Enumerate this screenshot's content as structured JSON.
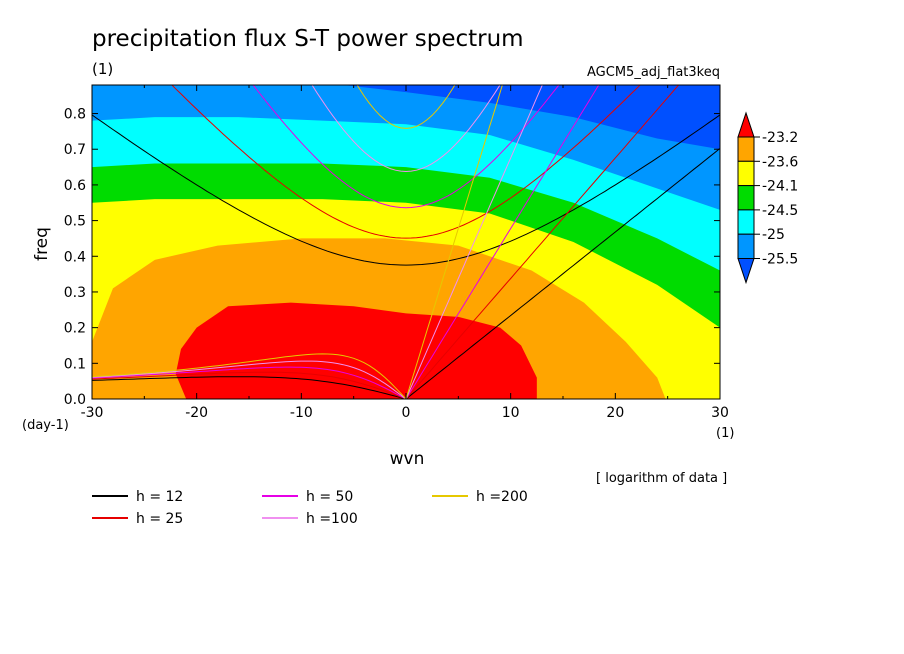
{
  "chart_data": {
    "type": "heatmap",
    "title": "precipitation flux S-T power spectrum",
    "subtitle_left": "(1)",
    "subtitle_right": "AGCM5_adj_flat3keq",
    "xlabel": "wvn",
    "ylabel": "freq",
    "x_unit": "(1)",
    "y_unit": "(day-1)",
    "xlim": [
      -30,
      30
    ],
    "ylim": [
      0,
      0.88
    ],
    "xticks": [
      "-30",
      "-20",
      "-10",
      "0",
      "10",
      "20",
      "30"
    ],
    "yticks": [
      "0.0",
      "0.1",
      "0.2",
      "0.3",
      "0.4",
      "0.5",
      "0.6",
      "0.7",
      "0.8"
    ],
    "note": "[ logarithm of data ]",
    "colorbar": {
      "levels": [
        "-23.2",
        "-23.6",
        "-24.1",
        "-24.5",
        "-25",
        "-25.5"
      ],
      "colors": [
        "#ff0000",
        "#ffa500",
        "#ffff00",
        "#00dc00",
        "#00ffff",
        "#0096ff",
        "#0050ff"
      ]
    },
    "contour_bands": [
      {
        "level": "-23.2",
        "color": "#ff0000",
        "boundary": [
          [
            -21,
            0
          ],
          [
            -22,
            0.07
          ],
          [
            -21.5,
            0.14
          ],
          [
            -20,
            0.2
          ],
          [
            -17,
            0.26
          ],
          [
            -11,
            0.27
          ],
          [
            -5,
            0.26
          ],
          [
            0,
            0.24
          ],
          [
            5,
            0.23
          ],
          [
            9,
            0.2
          ],
          [
            11,
            0.15
          ],
          [
            12.5,
            0.06
          ],
          [
            12.5,
            0
          ]
        ]
      },
      {
        "level": "-23.6",
        "color": "#ffa500",
        "boundary": [
          [
            -30,
            0.16
          ],
          [
            -28,
            0.31
          ],
          [
            -24,
            0.39
          ],
          [
            -18,
            0.43
          ],
          [
            -10,
            0.45
          ],
          [
            -2,
            0.45
          ],
          [
            5,
            0.43
          ],
          [
            12,
            0.36
          ],
          [
            17,
            0.27
          ],
          [
            21,
            0.16
          ],
          [
            24,
            0.06
          ],
          [
            24.8,
            0
          ]
        ]
      },
      {
        "level": "-24.1",
        "color": "#ffff00",
        "boundary": [
          [
            -30,
            0.55
          ],
          [
            -24,
            0.56
          ],
          [
            -16,
            0.56
          ],
          [
            -8,
            0.56
          ],
          [
            0,
            0.55
          ],
          [
            8,
            0.52
          ],
          [
            16,
            0.44
          ],
          [
            24,
            0.32
          ],
          [
            30,
            0.2
          ]
        ]
      },
      {
        "level": "-24.5",
        "color": "#00dc00",
        "boundary": [
          [
            -30,
            0.65
          ],
          [
            -24,
            0.66
          ],
          [
            -16,
            0.66
          ],
          [
            -8,
            0.66
          ],
          [
            0,
            0.65
          ],
          [
            8,
            0.62
          ],
          [
            16,
            0.55
          ],
          [
            24,
            0.45
          ],
          [
            30,
            0.36
          ]
        ]
      },
      {
        "level": "-25",
        "color": "#00ffff",
        "boundary": [
          [
            -30,
            0.78
          ],
          [
            -24,
            0.79
          ],
          [
            -16,
            0.79
          ],
          [
            -8,
            0.78
          ],
          [
            0,
            0.77
          ],
          [
            8,
            0.74
          ],
          [
            16,
            0.67
          ],
          [
            24,
            0.59
          ],
          [
            30,
            0.53
          ]
        ]
      },
      {
        "level": "-25.5",
        "color": "#0096ff",
        "boundary": [
          [
            -30,
            0.88
          ],
          [
            -20,
            0.88
          ],
          [
            -10,
            0.88
          ],
          [
            -6,
            0.88
          ],
          [
            0,
            0.86
          ],
          [
            8,
            0.83
          ],
          [
            16,
            0.79
          ],
          [
            24,
            0.73
          ],
          [
            30,
            0.7
          ]
        ]
      }
    ],
    "series": [
      {
        "name": "h = 12",
        "h": 12,
        "color": "#000000"
      },
      {
        "name": "h = 25",
        "h": 25,
        "color": "#e60000"
      },
      {
        "name": "h = 50",
        "h": 50,
        "color": "#e600e6"
      },
      {
        "name": "h =100",
        "h": 100,
        "color": "#f090f0"
      },
      {
        "name": "h =200",
        "h": 200,
        "color": "#e6c800"
      }
    ]
  }
}
